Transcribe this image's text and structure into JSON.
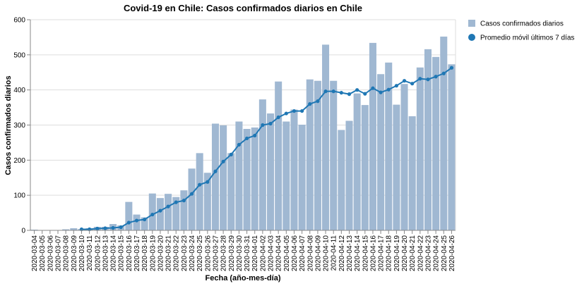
{
  "chart_data": {
    "type": "bar+line",
    "title": "Covid-19 en Chile: Casos confirmados diarios en Chile",
    "x_label": "Fecha (año-mes-día)",
    "y_label": "Casos confirmados diarios",
    "categories": [
      "2020-03-04",
      "2020-03-05",
      "2020-03-06",
      "2020-03-07",
      "2020-03-08",
      "2020-03-09",
      "2020-03-10",
      "2020-03-11",
      "2020-03-12",
      "2020-03-13",
      "2020-03-14",
      "2020-03-15",
      "2020-03-16",
      "2020-03-17",
      "2020-03-18",
      "2020-03-19",
      "2020-03-20",
      "2020-03-21",
      "2020-03-22",
      "2020-03-23",
      "2020-03-24",
      "2020-03-25",
      "2020-03-26",
      "2020-03-27",
      "2020-03-28",
      "2020-03-29",
      "2020-03-30",
      "2020-03-31",
      "2020-04-01",
      "2020-04-02",
      "2020-04-03",
      "2020-04-04",
      "2020-04-05",
      "2020-04-06",
      "2020-04-07",
      "2020-04-08",
      "2020-04-09",
      "2020-04-10",
      "2020-04-11",
      "2020-04-12",
      "2020-04-13",
      "2020-04-14",
      "2020-04-15",
      "2020-04-16",
      "2020-04-17",
      "2020-04-18",
      "2020-04-19",
      "2020-04-20",
      "2020-04-21",
      "2020-04-22",
      "2020-04-23",
      "2020-04-24",
      "2020-04-25",
      "2020-04-26"
    ],
    "series": [
      {
        "name": "Casos confirmados diarios",
        "color": "#a0b8d2",
        "kind": "bar",
        "values": [
          2,
          1,
          1,
          1,
          3,
          6,
          4,
          6,
          10,
          10,
          18,
          14,
          81,
          45,
          37,
          105,
          92,
          104,
          95,
          114,
          176,
          220,
          164,
          304,
          299,
          220,
          310,
          289,
          293,
          373,
          333,
          424,
          310,
          344,
          301,
          430,
          426,
          529,
          426,
          286,
          312,
          390,
          357,
          534,
          445,
          478,
          358,
          417,
          325,
          464,
          516,
          494,
          552,
          473
        ]
      },
      {
        "name": "Promedio móvil últimos 7 días",
        "color": "#1f77b4",
        "kind": "line",
        "values": [
          null,
          null,
          null,
          null,
          null,
          null,
          3,
          3,
          5,
          6,
          7,
          9,
          22,
          28,
          31,
          45,
          56,
          68,
          80,
          85,
          104,
          130,
          138,
          168,
          196,
          216,
          244,
          262,
          270,
          300,
          304,
          322,
          333,
          340,
          340,
          360,
          368,
          396,
          396,
          392,
          388,
          400,
          389,
          405,
          393,
          401,
          412,
          426,
          418,
          432,
          430,
          438,
          447,
          463
        ]
      }
    ],
    "ylim": [
      0,
      600
    ],
    "yticks": [
      0,
      100,
      200,
      300,
      400,
      500,
      600
    ],
    "grid": true,
    "legend": "top-right"
  }
}
